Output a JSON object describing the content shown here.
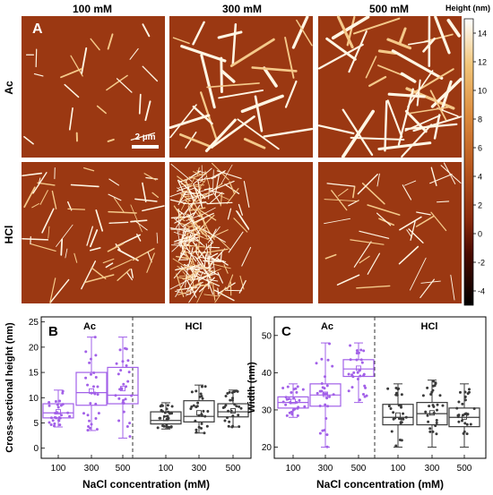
{
  "panel_a": {
    "label": "A",
    "columns": [
      "100 mM",
      "300 mM",
      "500 mM"
    ],
    "rows": [
      "Ac",
      "HCl"
    ],
    "scale_bar": "2 µm",
    "colorbar": {
      "title": "Height (nm)",
      "ticks": [
        14,
        12,
        10,
        8,
        6,
        4,
        2,
        0,
        -2,
        -4
      ],
      "range": [
        -5,
        15
      ],
      "colors": [
        "#000000",
        "#4a0a00",
        "#8b2a0c",
        "#b8561d",
        "#dc8a3c",
        "#f2c679",
        "#ffffff"
      ]
    }
  },
  "chart_data": [
    {
      "panel": "B",
      "type": "box",
      "ylabel": "Cross-sectional height (nm)",
      "xlabel": "NaCl concentration (mM)",
      "ylim": [
        -2,
        26
      ],
      "yticks": [
        0,
        5,
        10,
        15,
        20,
        25
      ],
      "categories": [
        "100",
        "300",
        "500",
        "100",
        "300",
        "500"
      ],
      "groups": [
        {
          "name": "Ac",
          "color": "#a260e8"
        },
        {
          "name": "HCl",
          "color": "#3a3a3a"
        }
      ],
      "boxes": [
        {
          "group": "Ac",
          "q1": 6.0,
          "median": 7.0,
          "q3": 8.8,
          "mean": 7.2,
          "whisker": [
            4.2,
            11.5
          ]
        },
        {
          "group": "Ac",
          "q1": 8.5,
          "median": 11.0,
          "q3": 15.0,
          "mean": 11.3,
          "whisker": [
            3.5,
            22.0
          ]
        },
        {
          "group": "Ac",
          "q1": 8.8,
          "median": 10.5,
          "q3": 16.0,
          "mean": 11.8,
          "whisker": [
            2.0,
            22.0
          ]
        },
        {
          "group": "HCl",
          "q1": 4.8,
          "median": 5.5,
          "q3": 7.2,
          "mean": 5.9,
          "whisker": [
            3.8,
            9.0
          ]
        },
        {
          "group": "HCl",
          "q1": 5.2,
          "median": 6.3,
          "q3": 9.4,
          "mean": 7.0,
          "whisker": [
            3.0,
            12.5
          ]
        },
        {
          "group": "HCl",
          "q1": 6.2,
          "median": 7.2,
          "q3": 8.8,
          "mean": 7.4,
          "whisker": [
            4.2,
            11.5
          ]
        }
      ]
    },
    {
      "panel": "C",
      "type": "box",
      "ylabel": "Width (nm)",
      "xlabel": "NaCl concentration (mM)",
      "ylim": [
        17,
        55
      ],
      "yticks": [
        20,
        30,
        40,
        50
      ],
      "categories": [
        "100",
        "300",
        "500",
        "100",
        "300",
        "500"
      ],
      "groups": [
        {
          "name": "Ac",
          "color": "#a260e8"
        },
        {
          "name": "HCl",
          "color": "#3a3a3a"
        }
      ],
      "boxes": [
        {
          "group": "Ac",
          "q1": 30.5,
          "median": 32.0,
          "q3": 33.5,
          "mean": 32.3,
          "whisker": [
            28.0,
            37.0
          ]
        },
        {
          "group": "Ac",
          "q1": 31.0,
          "median": 34.0,
          "q3": 37.0,
          "mean": 34.2,
          "whisker": [
            20.0,
            48.0
          ]
        },
        {
          "group": "Ac",
          "q1": 39.0,
          "median": 41.0,
          "q3": 43.5,
          "mean": 41.2,
          "whisker": [
            32.0,
            48.0
          ]
        },
        {
          "group": "HCl",
          "q1": 26.0,
          "median": 28.0,
          "q3": 31.5,
          "mean": 28.6,
          "whisker": [
            20.0,
            37.0
          ]
        },
        {
          "group": "HCl",
          "q1": 26.0,
          "median": 29.0,
          "q3": 32.0,
          "mean": 29.2,
          "whisker": [
            20.0,
            38.0
          ]
        },
        {
          "group": "HCl",
          "q1": 25.5,
          "median": 28.0,
          "q3": 30.5,
          "mean": 28.1,
          "whisker": [
            20.0,
            37.0
          ]
        }
      ]
    }
  ]
}
